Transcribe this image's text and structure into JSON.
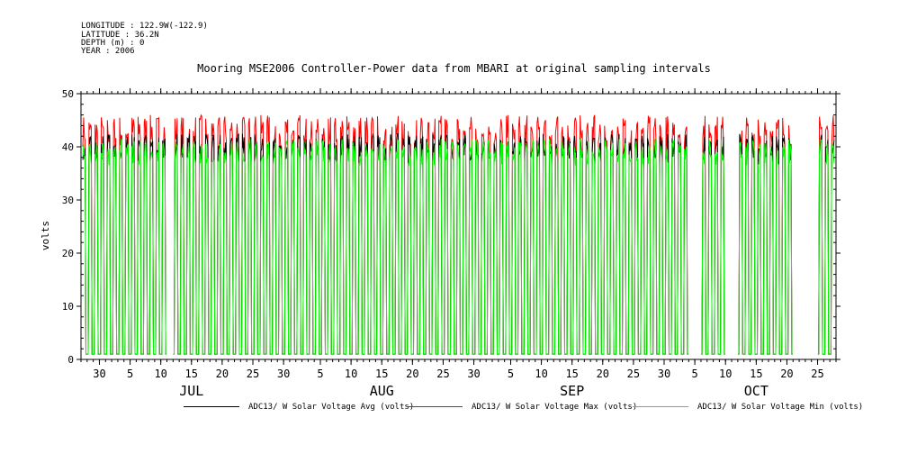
{
  "header": {
    "longitude": "LONGITUDE : 122.9W(-122.9)",
    "latitude": "LATITUDE : 36.2N",
    "depth": "DEPTH (m) : 0",
    "year": "YEAR : 2006"
  },
  "chart_data": {
    "type": "line",
    "title": "Mooring MSE2006 Controller-Power data from MBARI at original sampling intervals",
    "ylabel": "volts",
    "xlabel": "",
    "ylim": [
      0,
      50
    ],
    "yticks": [
      0,
      10,
      20,
      30,
      40,
      50
    ],
    "xlim": [
      "2006-06-27",
      "2006-10-28"
    ],
    "x_tick_labels": [
      "30",
      "5",
      "10",
      "15",
      "20",
      "25",
      "30",
      "5",
      "10",
      "15",
      "20",
      "25",
      "30",
      "5",
      "10",
      "15",
      "20",
      "25",
      "30",
      "5",
      "10",
      "15",
      "20",
      "25"
    ],
    "x_tick_dates": [
      "2006-06-30",
      "2006-07-05",
      "2006-07-10",
      "2006-07-15",
      "2006-07-20",
      "2006-07-25",
      "2006-07-30",
      "2006-08-05",
      "2006-08-10",
      "2006-08-15",
      "2006-08-20",
      "2006-08-25",
      "2006-08-30",
      "2006-09-05",
      "2006-09-10",
      "2006-09-15",
      "2006-09-20",
      "2006-09-25",
      "2006-09-30",
      "2006-10-05",
      "2006-10-10",
      "2006-10-15",
      "2006-10-20",
      "2006-10-25"
    ],
    "months": [
      {
        "label": "JUL",
        "date": "2006-07-15"
      },
      {
        "label": "AUG",
        "date": "2006-08-15"
      },
      {
        "label": "SEP",
        "date": "2006-09-15"
      },
      {
        "label": "OCT",
        "date": "2006-10-15"
      }
    ],
    "grid": false,
    "legend_position": "bottom",
    "series": [
      {
        "name": "ADC13/ W Solar Voltage Avg (volts)",
        "color": "#000000",
        "daily_high": 40,
        "night_low": 1
      },
      {
        "name": "ADC13/ W Solar Voltage Max (volts)",
        "color": "#ff0000",
        "daily_high": 43,
        "night_low": 1
      },
      {
        "name": "ADC13/ W Solar Voltage Min (volts)",
        "color": "#00ff00",
        "daily_high": 39,
        "night_low": 1
      }
    ],
    "data_gaps": [
      {
        "start": "2006-07-11",
        "end": "2006-07-12"
      },
      {
        "start": "2006-10-04",
        "end": "2006-10-06"
      },
      {
        "start": "2006-10-10",
        "end": "2006-10-12"
      },
      {
        "start": "2006-10-21",
        "end": "2006-10-25"
      }
    ]
  }
}
